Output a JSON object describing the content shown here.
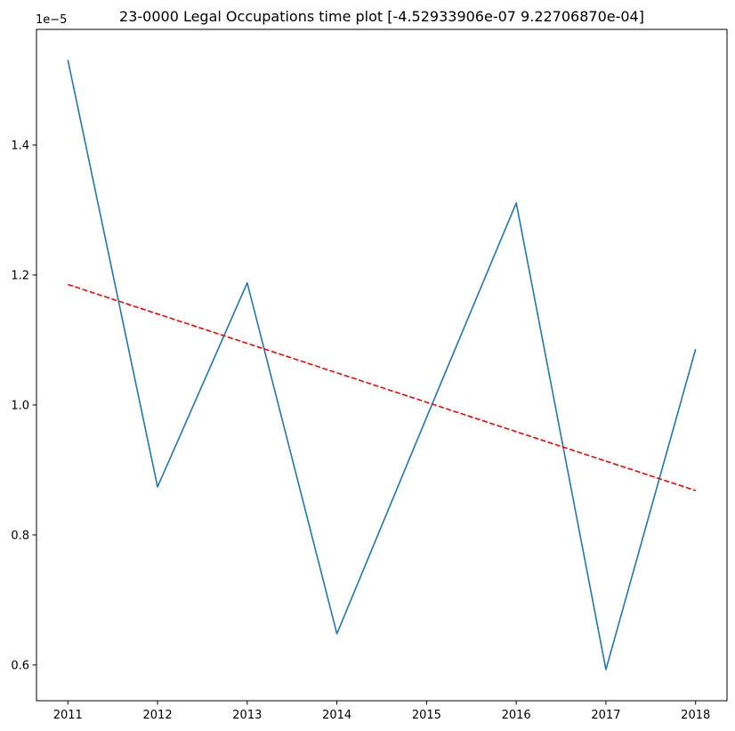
{
  "chart_data": {
    "type": "line",
    "title": "23-0000 Legal Occupations time plot [-4.52933906e-07  9.22706870e-04]",
    "xlabel": "",
    "ylabel": "",
    "y_scale_label": "1e−5",
    "x": [
      2011,
      2012,
      2013,
      2014,
      2015,
      2016,
      2017,
      2018
    ],
    "x_tick_labels": [
      "2011",
      "2012",
      "2013",
      "2014",
      "2015",
      "2016",
      "2017",
      "2018"
    ],
    "y_ticks": [
      0.6,
      0.8,
      1.0,
      1.2,
      1.4
    ],
    "y_tick_labels": [
      "0.6",
      "0.8",
      "1.0",
      "1.2",
      "1.4"
    ],
    "xlim": [
      2010.65,
      2018.35
    ],
    "ylim": [
      0.545,
      1.578
    ],
    "grid": false,
    "series": [
      {
        "style": "solid",
        "color": "#1f77b4",
        "values": [
          1.531,
          0.874,
          1.188,
          0.648,
          0.981,
          1.311,
          0.593,
          1.086
        ]
      },
      {
        "style": "dashed",
        "color": "#ff0000",
        "values": [
          1.1855,
          1.1402,
          1.0949,
          1.0496,
          1.0043,
          0.959,
          0.9137,
          0.8684
        ]
      }
    ]
  }
}
